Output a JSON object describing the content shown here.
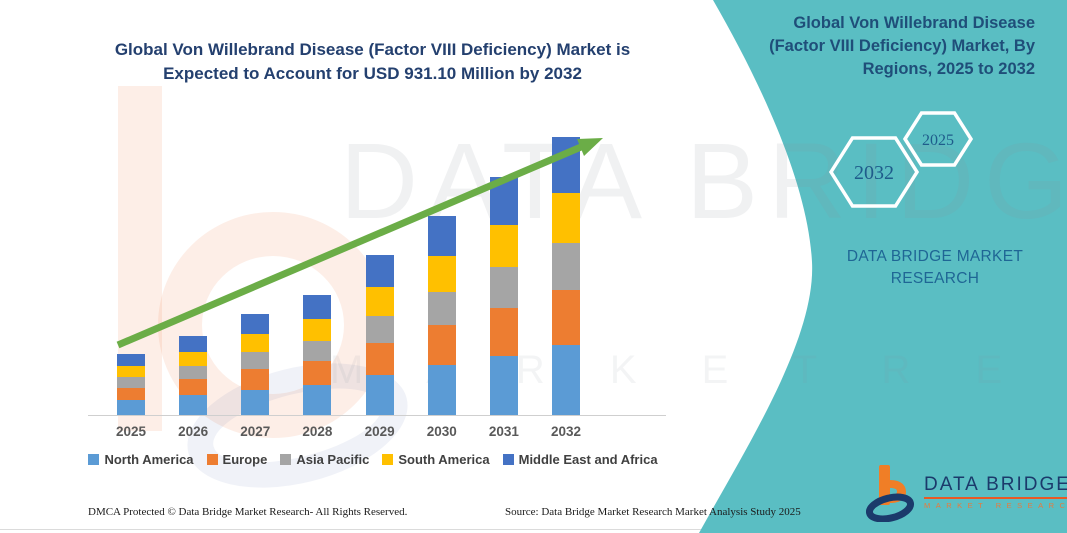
{
  "main_title": {
    "line1": "Global Von Willebrand Disease (Factor VIII Deficiency) Market is",
    "line2": "Expected to Account for USD 931.10 Million by 2032"
  },
  "chart_data": {
    "type": "bar",
    "subtype": "stacked-vertical",
    "unit": "USD Million",
    "categories": [
      "2025",
      "2026",
      "2027",
      "2028",
      "2029",
      "2030",
      "2031",
      "2032"
    ],
    "series": [
      {
        "name": "North America",
        "color": "#5B9BD5",
        "values": [
          51,
          66,
          85,
          100,
          134,
          167,
          199,
          233.0
        ]
      },
      {
        "name": "Europe",
        "color": "#ED7D31",
        "values": [
          41,
          53,
          68,
          80,
          107,
          133,
          159,
          186.0
        ]
      },
      {
        "name": "Asia Pacific",
        "color": "#A5A5A5",
        "values": [
          35,
          45,
          57,
          68,
          91,
          113,
          136,
          158.0
        ]
      },
      {
        "name": "South America",
        "color": "#FFC000",
        "values": [
          37,
          48,
          61,
          73,
          97,
          121,
          144,
          168.0
        ]
      },
      {
        "name": "Middle East and Africa",
        "color": "#4472C4",
        "values": [
          40,
          53,
          67,
          81,
          107,
          133,
          159,
          186.1
        ]
      }
    ],
    "totals": [
      204,
      265,
      338,
      402,
      536,
      667,
      797,
      931.1
    ],
    "ylim": [
      0,
      960
    ],
    "grid": false,
    "legend_position": "bottom",
    "trend_arrow_color": "#6BAD47",
    "annotation": "Upward green trend arrow from 2025 to 2032"
  },
  "side_panel": {
    "title": "Global Von Willebrand Disease (Factor VIII Deficiency) Market, By Regions, 2025 to 2032",
    "hexagon_back_label": "2032",
    "hexagon_front_label": "2025",
    "brand_text": "DATA BRIDGE MARKET RESEARCH",
    "panel_color": "#5ABEC3"
  },
  "logo": {
    "name": "DATA BRIDGE",
    "subtext": "MARKET RESEARCH",
    "orange": "#F07E26",
    "navy": "#1B3A6B"
  },
  "watermark": {
    "big_text": "DATA BRIDGE",
    "small_text": "M A R K E T   R E S E A R C H"
  },
  "footer": {
    "left": "DMCA Protected © Data Bridge Market Research-  All Rights Reserved.",
    "right": "Source: Data Bridge Market Research  Market Analysis Study 2025"
  }
}
